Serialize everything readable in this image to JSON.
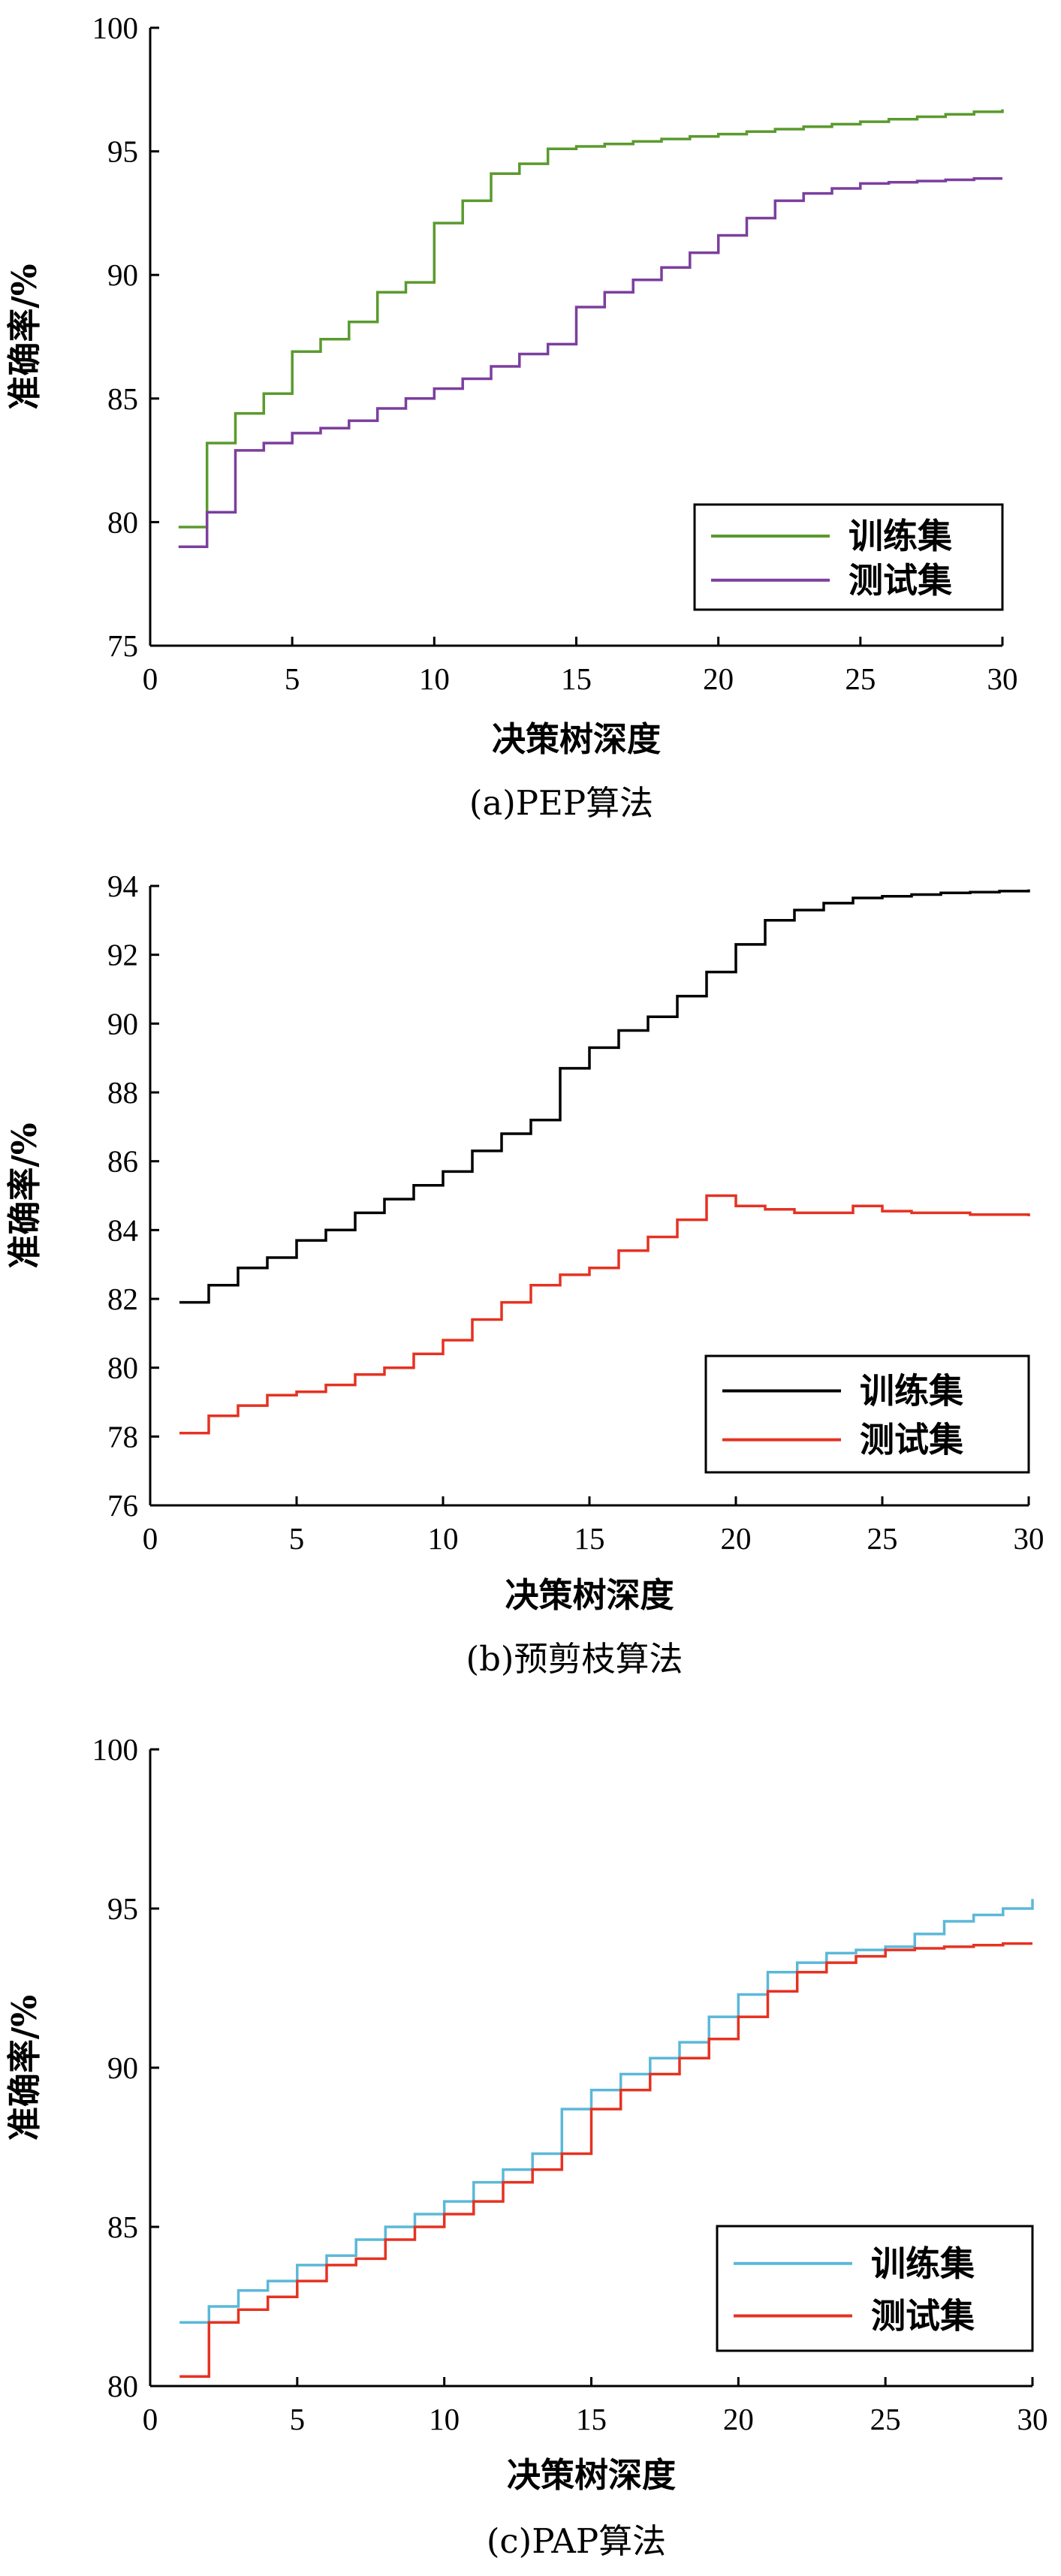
{
  "chart_data": [
    {
      "type": "line",
      "step": true,
      "caption": "(a)PEP算法",
      "xlabel": "决策树深度",
      "ylabel": "准确率/%",
      "xlim": [
        0,
        30
      ],
      "ylim": [
        75,
        100
      ],
      "xticks": [
        0,
        5,
        10,
        15,
        20,
        25,
        30
      ],
      "yticks": [
        75,
        80,
        85,
        90,
        95,
        100
      ],
      "grid": false,
      "legend_position": "bottom-right",
      "x": [
        1,
        2,
        3,
        4,
        5,
        6,
        7,
        8,
        9,
        10,
        11,
        12,
        13,
        14,
        15,
        16,
        17,
        18,
        19,
        20,
        21,
        22,
        23,
        24,
        25,
        26,
        27,
        28,
        29,
        30
      ],
      "series": [
        {
          "name": "训练集",
          "color": "#5a9a2e",
          "values": [
            79.8,
            83.2,
            84.4,
            85.2,
            86.9,
            87.4,
            88.1,
            89.3,
            89.7,
            92.1,
            93.0,
            94.1,
            94.5,
            95.1,
            95.2,
            95.3,
            95.4,
            95.5,
            95.6,
            95.7,
            95.8,
            95.9,
            96.0,
            96.1,
            96.2,
            96.3,
            96.4,
            96.5,
            96.6,
            96.7
          ]
        },
        {
          "name": "测试集",
          "color": "#7b3f9e",
          "values": [
            79.0,
            80.4,
            82.9,
            83.2,
            83.6,
            83.8,
            84.1,
            84.6,
            85.0,
            85.4,
            85.8,
            86.3,
            86.8,
            87.2,
            88.7,
            89.3,
            89.8,
            90.3,
            90.9,
            91.6,
            92.3,
            93.0,
            93.3,
            93.5,
            93.7,
            93.75,
            93.8,
            93.85,
            93.9,
            93.9
          ]
        }
      ]
    },
    {
      "type": "line",
      "step": true,
      "caption": "(b)预剪枝算法",
      "xlabel": "决策树深度",
      "ylabel": "准确率/%",
      "xlim": [
        0,
        30
      ],
      "ylim": [
        76,
        94
      ],
      "xticks": [
        0,
        5,
        10,
        15,
        20,
        25,
        30
      ],
      "yticks": [
        76,
        78,
        80,
        82,
        84,
        86,
        88,
        90,
        92,
        94
      ],
      "grid": false,
      "legend_position": "bottom-right",
      "x": [
        1,
        2,
        3,
        4,
        5,
        6,
        7,
        8,
        9,
        10,
        11,
        12,
        13,
        14,
        15,
        16,
        17,
        18,
        19,
        20,
        21,
        22,
        23,
        24,
        25,
        26,
        27,
        28,
        29,
        30
      ],
      "series": [
        {
          "name": "训练集",
          "color": "#000000",
          "values": [
            81.9,
            82.4,
            82.9,
            83.2,
            83.7,
            84.0,
            84.5,
            84.9,
            85.3,
            85.7,
            86.3,
            86.8,
            87.2,
            88.7,
            89.3,
            89.8,
            90.2,
            90.8,
            91.5,
            92.3,
            93.0,
            93.3,
            93.5,
            93.65,
            93.7,
            93.75,
            93.8,
            93.82,
            93.85,
            93.9
          ]
        },
        {
          "name": "测试集",
          "color": "#e53222",
          "values": [
            78.1,
            78.6,
            78.9,
            79.2,
            79.3,
            79.5,
            79.8,
            80.0,
            80.4,
            80.8,
            81.4,
            81.9,
            82.4,
            82.7,
            82.9,
            83.4,
            83.8,
            84.3,
            85.0,
            84.7,
            84.6,
            84.5,
            84.5,
            84.7,
            84.55,
            84.5,
            84.5,
            84.45,
            84.45,
            84.4
          ]
        }
      ]
    },
    {
      "type": "line",
      "step": true,
      "caption": "(c)PAP算法",
      "xlabel": "决策树深度",
      "ylabel": "准确率/%",
      "xlim": [
        0,
        30
      ],
      "ylim": [
        80,
        100
      ],
      "xticks": [
        0,
        5,
        10,
        15,
        20,
        25,
        30
      ],
      "yticks": [
        80,
        85,
        90,
        95,
        100
      ],
      "grid": false,
      "legend_position": "bottom-right",
      "x": [
        1,
        2,
        3,
        4,
        5,
        6,
        7,
        8,
        9,
        10,
        11,
        12,
        13,
        14,
        15,
        16,
        17,
        18,
        19,
        20,
        21,
        22,
        23,
        24,
        25,
        26,
        27,
        28,
        29,
        30
      ],
      "series": [
        {
          "name": "训练集",
          "color": "#5bb8d8",
          "values": [
            82.0,
            82.5,
            83.0,
            83.3,
            83.8,
            84.1,
            84.6,
            85.0,
            85.4,
            85.8,
            86.4,
            86.8,
            87.3,
            88.7,
            89.3,
            89.8,
            90.3,
            90.8,
            91.6,
            92.3,
            93.0,
            93.3,
            93.6,
            93.7,
            93.8,
            94.2,
            94.6,
            94.8,
            95.0,
            95.3
          ]
        },
        {
          "name": "测试集",
          "color": "#e53222",
          "values": [
            80.3,
            82.0,
            82.4,
            82.8,
            83.3,
            83.8,
            84.0,
            84.6,
            85.0,
            85.4,
            85.8,
            86.4,
            86.8,
            87.3,
            88.7,
            89.3,
            89.8,
            90.3,
            90.9,
            91.6,
            92.4,
            93.0,
            93.3,
            93.5,
            93.7,
            93.75,
            93.8,
            93.85,
            93.9,
            93.9
          ]
        }
      ]
    }
  ]
}
